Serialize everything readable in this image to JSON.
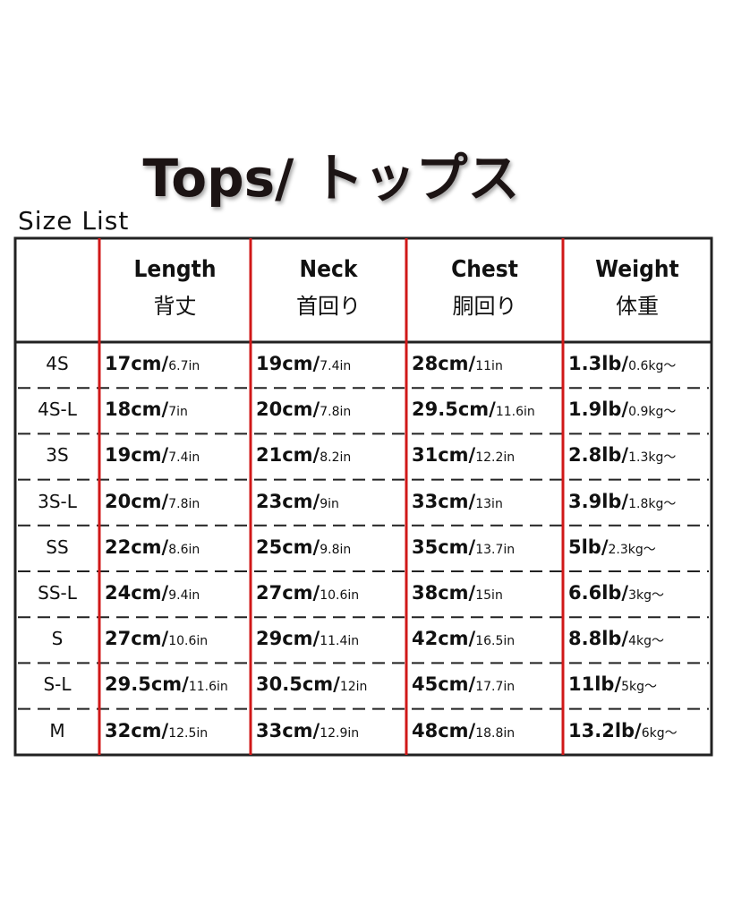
{
  "header": {
    "title": "Tops/ トップス",
    "subtitle": "Size List"
  },
  "table": {
    "columns": [
      {
        "en": "Length",
        "ja": "背丈"
      },
      {
        "en": "Neck",
        "ja": "首回り"
      },
      {
        "en": "Chest",
        "ja": "胴回り"
      },
      {
        "en": "Weight",
        "ja": "体重"
      }
    ],
    "rows": [
      {
        "size": "4S",
        "cells": [
          {
            "main": "17cm/",
            "sub": "6.7in"
          },
          {
            "main": "19cm/",
            "sub": "7.4in"
          },
          {
            "main": "28cm/",
            "sub": "11in"
          },
          {
            "main": "1.3lb/",
            "sub": "0.6kg～"
          }
        ]
      },
      {
        "size": "4S-L",
        "cells": [
          {
            "main": "18cm/",
            "sub": "7in"
          },
          {
            "main": "20cm/",
            "sub": "7.8in"
          },
          {
            "main": "29.5cm/",
            "sub": "11.6in"
          },
          {
            "main": "1.9lb/",
            "sub": "0.9kg～"
          }
        ]
      },
      {
        "size": "3S",
        "cells": [
          {
            "main": "19cm/",
            "sub": "7.4in"
          },
          {
            "main": "21cm/",
            "sub": "8.2in"
          },
          {
            "main": "31cm/",
            "sub": "12.2in"
          },
          {
            "main": "2.8lb/",
            "sub": "1.3kg～"
          }
        ]
      },
      {
        "size": "3S-L",
        "cells": [
          {
            "main": "20cm/",
            "sub": "7.8in"
          },
          {
            "main": "23cm/",
            "sub": "9in"
          },
          {
            "main": "33cm/",
            "sub": "13in"
          },
          {
            "main": "3.9lb/",
            "sub": "1.8kg～"
          }
        ]
      },
      {
        "size": "SS",
        "cells": [
          {
            "main": "22cm/",
            "sub": "8.6in"
          },
          {
            "main": "25cm/",
            "sub": "9.8in"
          },
          {
            "main": "35cm/",
            "sub": "13.7in"
          },
          {
            "main": "5lb/",
            "sub": "2.3kg～"
          }
        ]
      },
      {
        "size": "SS-L",
        "cells": [
          {
            "main": "24cm/",
            "sub": "9.4in"
          },
          {
            "main": "27cm/",
            "sub": "10.6in"
          },
          {
            "main": "38cm/",
            "sub": "15in"
          },
          {
            "main": "6.6lb/",
            "sub": "3kg～"
          }
        ]
      },
      {
        "size": "S",
        "cells": [
          {
            "main": "27cm/",
            "sub": "10.6in"
          },
          {
            "main": "29cm/",
            "sub": "11.4in"
          },
          {
            "main": "42cm/",
            "sub": "16.5in"
          },
          {
            "main": "8.8lb/",
            "sub": "4kg～"
          }
        ]
      },
      {
        "size": "S-L",
        "cells": [
          {
            "main": "29.5cm/",
            "sub": "11.6in"
          },
          {
            "main": "30.5cm/",
            "sub": "12in"
          },
          {
            "main": "45cm/",
            "sub": "17.7in"
          },
          {
            "main": "11lb/",
            "sub": "5kg～"
          }
        ]
      },
      {
        "size": "M",
        "cells": [
          {
            "main": "32cm/",
            "sub": "12.5in"
          },
          {
            "main": "33cm/",
            "sub": "12.9in"
          },
          {
            "main": "48cm/",
            "sub": "18.8in"
          },
          {
            "main": "13.2lb/",
            "sub": "6kg～"
          }
        ]
      }
    ]
  }
}
